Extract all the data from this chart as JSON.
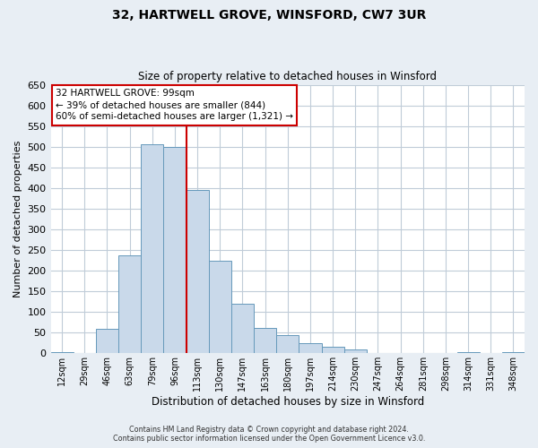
{
  "title": "32, HARTWELL GROVE, WINSFORD, CW7 3UR",
  "subtitle": "Size of property relative to detached houses in Winsford",
  "xlabel": "Distribution of detached houses by size in Winsford",
  "ylabel": "Number of detached properties",
  "bin_labels": [
    "12sqm",
    "29sqm",
    "46sqm",
    "63sqm",
    "79sqm",
    "96sqm",
    "113sqm",
    "130sqm",
    "147sqm",
    "163sqm",
    "180sqm",
    "197sqm",
    "214sqm",
    "230sqm",
    "247sqm",
    "264sqm",
    "281sqm",
    "298sqm",
    "314sqm",
    "331sqm",
    "348sqm"
  ],
  "bar_heights": [
    3,
    0,
    60,
    238,
    505,
    500,
    396,
    225,
    120,
    62,
    44,
    24,
    15,
    10,
    0,
    0,
    0,
    0,
    3,
    0,
    3
  ],
  "bar_color": "#c9d9ea",
  "bar_edge_color": "#6699bb",
  "vline_x_index": 5,
  "vline_color": "#cc0000",
  "annotation_line1": "32 HARTWELL GROVE: 99sqm",
  "annotation_line2": "← 39% of detached houses are smaller (844)",
  "annotation_line3": "60% of semi-detached houses are larger (1,321) →",
  "annotation_box_color": "#ffffff",
  "annotation_box_edge": "#cc0000",
  "ylim": [
    0,
    650
  ],
  "yticks": [
    0,
    50,
    100,
    150,
    200,
    250,
    300,
    350,
    400,
    450,
    500,
    550,
    600,
    650
  ],
  "footer1": "Contains HM Land Registry data © Crown copyright and database right 2024.",
  "footer2": "Contains public sector information licensed under the Open Government Licence v3.0.",
  "bg_color": "#e8eef4",
  "plot_bg_color": "#ffffff",
  "grid_color": "#c0ccd8"
}
